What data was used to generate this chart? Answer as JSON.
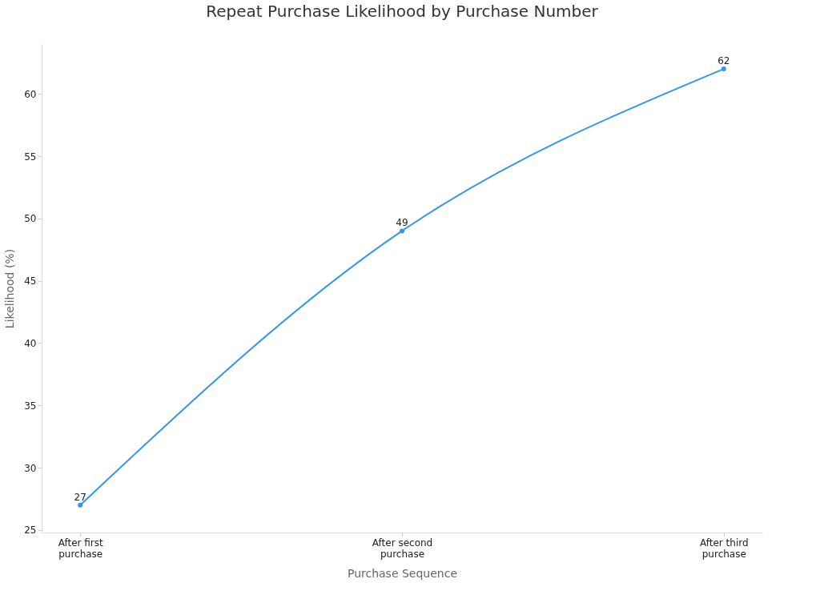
{
  "chart_data": {
    "type": "line",
    "title": "Repeat Purchase Likelihood by Purchase Number",
    "xlabel": "Purchase Sequence",
    "ylabel": "Likelihood (%)",
    "categories": [
      "After first\npurchase",
      "After second\npurchase",
      "After third\npurchase"
    ],
    "series": [
      {
        "color": "#3496eb",
        "values": [
          27,
          49,
          62
        ]
      }
    ],
    "ylim": [
      24.8,
      64
    ],
    "yticks": [
      25,
      30,
      35,
      40,
      45,
      50,
      55,
      60
    ],
    "grid": false,
    "legend": false,
    "marker": "circle",
    "line_style": "solid",
    "data_labels": true
  }
}
